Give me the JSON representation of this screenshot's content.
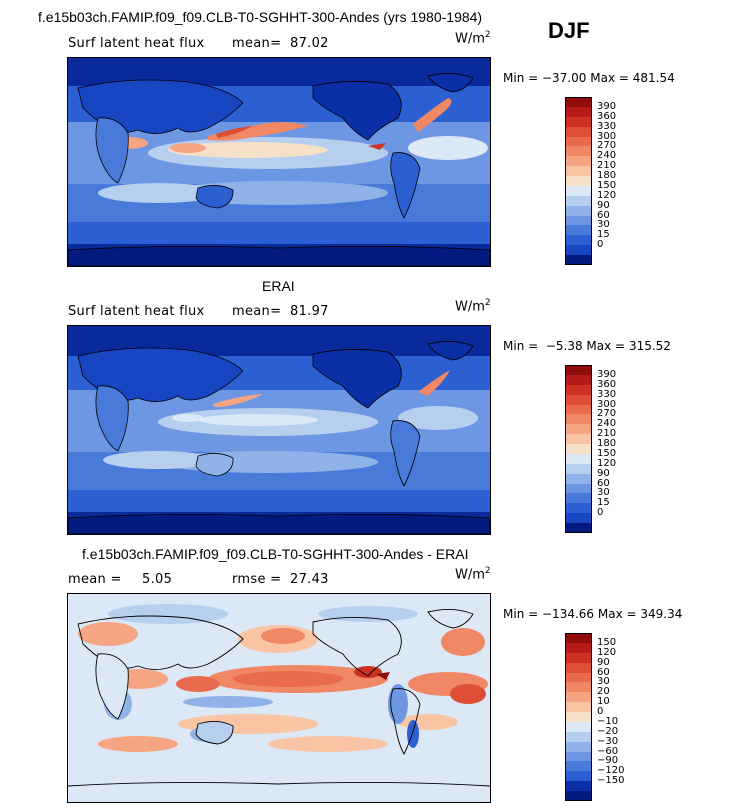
{
  "header": {
    "title": "f.e15b03ch.FAMIP.f09_f09.CLB-T0-SGHHT-300-Andes (yrs 1980-1984)",
    "season": "DJF"
  },
  "colors": {
    "positive": [
      "#f7e0c8",
      "#f8c4a3",
      "#f5a582",
      "#f08765",
      "#e96a4c",
      "#de4d36",
      "#cd3124",
      "#b41a17",
      "#8f0d0d"
    ],
    "negative": [
      "#dce8f6",
      "#b7cfef",
      "#8fb2e8",
      "#6d97e3",
      "#4a7ad9",
      "#2c5fd2",
      "#1845c2",
      "#0a2fa6",
      "#031b80"
    ],
    "land_low": "#1f4fc8",
    "ocean_deep": "#1038b8"
  },
  "panels": [
    {
      "label": "Surf latent heat flux",
      "mean_label": "mean=",
      "mean_value": "87.02",
      "units": "W/m",
      "units_sup": "2",
      "min_label": "Min =",
      "min_value": "−37.00",
      "max_label": "Max =",
      "max_value": "481.54",
      "cbar_levels": [
        "390",
        "360",
        "330",
        "300",
        "270",
        "240",
        "210",
        "180",
        "150",
        "120",
        "90",
        "60",
        "30",
        "15",
        "0"
      ]
    },
    {
      "section_title": "ERAI",
      "label": "Surf latent heat flux",
      "mean_label": "mean=",
      "mean_value": "81.97",
      "units": "W/m",
      "units_sup": "2",
      "min_label": "Min =",
      "min_value": "−5.38",
      "max_label": "Max =",
      "max_value": "315.52",
      "cbar_levels": [
        "390",
        "360",
        "330",
        "300",
        "270",
        "240",
        "210",
        "180",
        "150",
        "120",
        "90",
        "60",
        "30",
        "15",
        "0"
      ]
    },
    {
      "section_title": "f.e15b03ch.FAMIP.f09_f09.CLB-T0-SGHHT-300-Andes - ERAI",
      "mean_label": "mean =",
      "mean_value": "5.05",
      "rmse_label": "rmse =",
      "rmse_value": "27.43",
      "units": "W/m",
      "units_sup": "2",
      "min_label": "Min =",
      "min_value": "−134.66",
      "max_label": "Max =",
      "max_value": "349.34",
      "cbar_levels": [
        "150",
        "120",
        "90",
        "60",
        "30",
        "20",
        "10",
        "0",
        "−10",
        "−20",
        "−30",
        "−60",
        "−90",
        "−120",
        "−150"
      ]
    }
  ]
}
